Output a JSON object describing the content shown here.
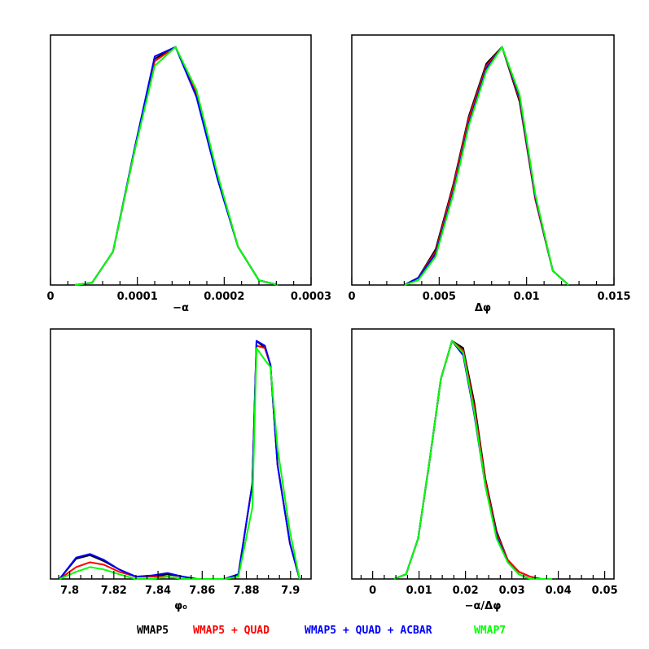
{
  "legend": [
    {
      "name": "WMAP5",
      "color": "#000000"
    },
    {
      "name": "WMAP5 + QUAD",
      "color": "#ff0000"
    },
    {
      "name": "WMAP5 + QUAD + ACBAR",
      "color": "#0000ff"
    },
    {
      "name": "WMAP7",
      "color": "#00ff00"
    }
  ],
  "chart_data": [
    {
      "type": "line",
      "xlabel": "−α",
      "xlim": [
        0,
        0.0003
      ],
      "ylim": [
        0,
        1.05
      ],
      "major_ticks": [
        0,
        0.0001,
        0.0002,
        0.0003
      ],
      "tick_labels": [
        "0",
        "0.0001",
        "0.0002",
        "0.0003"
      ],
      "minor_step": 2e-05,
      "series": [
        {
          "name": "WMAP5",
          "color": "#000000",
          "x": [
            2.8e-05,
            4.8e-05,
            7.2e-05,
            9.6e-05,
            0.00012,
            0.000144,
            0.000168,
            0.000192,
            0.000216,
            0.00024,
            0.000262
          ],
          "y": [
            0.0,
            0.01,
            0.14,
            0.55,
            0.95,
            1.0,
            0.8,
            0.45,
            0.16,
            0.02,
            0.0
          ]
        },
        {
          "name": "WMAP5 + QUAD",
          "color": "#ff0000",
          "x": [
            2.8e-05,
            4.8e-05,
            7.2e-05,
            9.6e-05,
            0.00012,
            0.000144,
            0.000168,
            0.000192,
            0.000216,
            0.00024,
            0.000262
          ],
          "y": [
            0.0,
            0.01,
            0.14,
            0.55,
            0.94,
            1.0,
            0.81,
            0.46,
            0.16,
            0.02,
            0.0
          ]
        },
        {
          "name": "WMAP5 + QUAD + ACBAR",
          "color": "#0000ff",
          "x": [
            2.8e-05,
            4.8e-05,
            7.2e-05,
            9.6e-05,
            0.00012,
            0.000144,
            0.000168,
            0.000192,
            0.000216,
            0.00024,
            0.000262
          ],
          "y": [
            0.0,
            0.01,
            0.14,
            0.56,
            0.96,
            1.0,
            0.79,
            0.45,
            0.16,
            0.02,
            0.0
          ]
        },
        {
          "name": "WMAP7",
          "color": "#00ff00",
          "x": [
            2.8e-05,
            4.8e-05,
            7.2e-05,
            9.6e-05,
            0.00012,
            0.000144,
            0.000168,
            0.000192,
            0.000216,
            0.00024,
            0.000262
          ],
          "y": [
            0.0,
            0.01,
            0.14,
            0.55,
            0.92,
            1.0,
            0.82,
            0.47,
            0.16,
            0.02,
            0.0
          ]
        }
      ]
    },
    {
      "type": "line",
      "xlabel": "Δφ",
      "xlim": [
        0,
        0.015
      ],
      "ylim": [
        0,
        1.05
      ],
      "major_ticks": [
        0,
        0.005,
        0.01,
        0.015
      ],
      "tick_labels": [
        "0",
        "0.005",
        "0.01",
        "0.015"
      ],
      "minor_step": 0.001,
      "series": [
        {
          "name": "WMAP5",
          "color": "#000000",
          "x": [
            0.003,
            0.0038,
            0.0048,
            0.0058,
            0.0067,
            0.0077,
            0.0086,
            0.0096,
            0.0105,
            0.0115,
            0.0124
          ],
          "y": [
            0.0,
            0.03,
            0.15,
            0.42,
            0.71,
            0.93,
            1.0,
            0.77,
            0.36,
            0.06,
            0.0
          ]
        },
        {
          "name": "WMAP5 + QUAD",
          "color": "#ff0000",
          "x": [
            0.003,
            0.0038,
            0.0048,
            0.0058,
            0.0067,
            0.0077,
            0.0086,
            0.0096,
            0.0105,
            0.0115,
            0.0124
          ],
          "y": [
            0.0,
            0.03,
            0.14,
            0.41,
            0.7,
            0.92,
            1.0,
            0.78,
            0.36,
            0.06,
            0.0
          ]
        },
        {
          "name": "WMAP5 + QUAD + ACBAR",
          "color": "#0000ff",
          "x": [
            0.003,
            0.0038,
            0.0048,
            0.0058,
            0.0067,
            0.0077,
            0.0086,
            0.0096,
            0.0105,
            0.0115,
            0.0124
          ],
          "y": [
            0.0,
            0.03,
            0.13,
            0.39,
            0.68,
            0.91,
            1.0,
            0.79,
            0.37,
            0.06,
            0.0
          ]
        },
        {
          "name": "WMAP7",
          "color": "#00ff00",
          "x": [
            0.003,
            0.0038,
            0.0048,
            0.0058,
            0.0067,
            0.0077,
            0.0086,
            0.0096,
            0.0105,
            0.0115,
            0.0124
          ],
          "y": [
            0.0,
            0.02,
            0.12,
            0.38,
            0.67,
            0.9,
            1.0,
            0.8,
            0.38,
            0.06,
            0.0
          ]
        }
      ]
    },
    {
      "type": "line",
      "xlabel": "φ₀",
      "xlim": [
        7.7913,
        7.9093
      ],
      "ylim": [
        0,
        1.05
      ],
      "major_ticks": [
        7.8,
        7.82,
        7.84,
        7.86,
        7.88,
        7.9
      ],
      "tick_labels": [
        "7.8",
        "7.82",
        "7.84",
        "7.86",
        "7.88",
        "7.9"
      ],
      "minor_step": 0.005,
      "series": [
        {
          "name": "WMAP5",
          "color": "#000000",
          "x": [
            7.7954,
            7.8029,
            7.8092,
            7.8155,
            7.8224,
            7.8299,
            7.8374,
            7.8443,
            7.8512,
            7.8576,
            7.8644,
            7.8701,
            7.8764,
            7.8827,
            7.8846,
            7.8884,
            7.8909,
            7.8941,
            7.8997,
            7.9041
          ],
          "y": [
            0.0,
            0.085,
            0.1,
            0.075,
            0.04,
            0.01,
            0.01,
            0.02,
            0.01,
            0.0,
            0.0,
            0.0,
            0.02,
            0.4,
            1.0,
            0.97,
            0.9,
            0.48,
            0.15,
            0.0
          ]
        },
        {
          "name": "WMAP5 + QUAD",
          "color": "#ff0000",
          "x": [
            7.7954,
            7.8029,
            7.8092,
            7.8155,
            7.8224,
            7.8299,
            7.8374,
            7.8443,
            7.8512,
            7.8576,
            7.8644,
            7.8701,
            7.8764,
            7.8827,
            7.8846,
            7.8884,
            7.8909,
            7.8941,
            7.8997,
            7.9041
          ],
          "y": [
            0.0,
            0.05,
            0.07,
            0.06,
            0.03,
            0.01,
            0.01,
            0.01,
            0.0,
            0.0,
            0.0,
            0.0,
            0.02,
            0.4,
            0.98,
            0.97,
            0.9,
            0.48,
            0.15,
            0.0
          ]
        },
        {
          "name": "WMAP5 + QUAD + ACBAR",
          "color": "#0000ff",
          "x": [
            7.7954,
            7.8029,
            7.8092,
            7.8155,
            7.8224,
            7.8299,
            7.8374,
            7.8443,
            7.8512,
            7.8576,
            7.8644,
            7.8701,
            7.8764,
            7.8827,
            7.8846,
            7.8884,
            7.8909,
            7.8941,
            7.8997,
            7.9041
          ],
          "y": [
            0.0,
            0.09,
            0.105,
            0.08,
            0.04,
            0.01,
            0.015,
            0.025,
            0.01,
            0.0,
            0.0,
            0.0,
            0.02,
            0.4,
            1.0,
            0.98,
            0.9,
            0.48,
            0.15,
            0.0
          ]
        },
        {
          "name": "WMAP7",
          "color": "#00ff00",
          "x": [
            7.7954,
            7.8029,
            7.8092,
            7.8155,
            7.8224,
            7.8299,
            7.8374,
            7.8443,
            7.8512,
            7.8576,
            7.8644,
            7.8701,
            7.8764,
            7.8827,
            7.8846,
            7.8884,
            7.8909,
            7.8941,
            7.8997,
            7.9041
          ],
          "y": [
            0.0,
            0.03,
            0.05,
            0.04,
            0.02,
            0.0,
            0.0,
            0.01,
            0.0,
            0.0,
            0.0,
            0.0,
            0.01,
            0.3,
            0.97,
            0.92,
            0.89,
            0.55,
            0.2,
            0.0
          ]
        }
      ]
    },
    {
      "type": "line",
      "xlabel": "−α/Δφ",
      "xlim": [
        -0.0045,
        0.052
      ],
      "ylim": [
        0,
        1.05
      ],
      "major_ticks": [
        0,
        0.01,
        0.02,
        0.03,
        0.04,
        0.05
      ],
      "tick_labels": [
        "0",
        "0.01",
        "0.02",
        "0.03",
        "0.04",
        "0.05"
      ],
      "minor_step": 0.0025,
      "series": [
        {
          "name": "WMAP5",
          "color": "#000000",
          "x": [
            0.0046,
            0.0072,
            0.0098,
            0.0123,
            0.0147,
            0.0171,
            0.0195,
            0.0219,
            0.0243,
            0.0267,
            0.0291,
            0.0315,
            0.0339,
            0.0363,
            0.0387
          ],
          "y": [
            0.0,
            0.02,
            0.17,
            0.5,
            0.84,
            1.0,
            0.97,
            0.74,
            0.42,
            0.2,
            0.08,
            0.03,
            0.01,
            0.0,
            0.0
          ]
        },
        {
          "name": "WMAP5 + QUAD",
          "color": "#ff0000",
          "x": [
            0.0046,
            0.0072,
            0.0098,
            0.0123,
            0.0147,
            0.0171,
            0.0195,
            0.0219,
            0.0243,
            0.0267,
            0.0291,
            0.0315,
            0.0339,
            0.0363,
            0.0387
          ],
          "y": [
            0.0,
            0.02,
            0.17,
            0.5,
            0.84,
            1.0,
            0.96,
            0.72,
            0.41,
            0.19,
            0.08,
            0.03,
            0.01,
            0.0,
            0.0
          ]
        },
        {
          "name": "WMAP5 + QUAD + ACBAR",
          "color": "#0000ff",
          "x": [
            0.0046,
            0.0072,
            0.0098,
            0.0123,
            0.0147,
            0.0171,
            0.0195,
            0.0219,
            0.0243,
            0.0267,
            0.0291,
            0.0315,
            0.0339,
            0.0363,
            0.0387
          ],
          "y": [
            0.0,
            0.02,
            0.17,
            0.5,
            0.84,
            1.0,
            0.94,
            0.69,
            0.39,
            0.18,
            0.07,
            0.02,
            0.0,
            0.0,
            0.0
          ]
        },
        {
          "name": "WMAP7",
          "color": "#00ff00",
          "x": [
            0.0046,
            0.0072,
            0.0098,
            0.0123,
            0.0147,
            0.0171,
            0.0195,
            0.0219,
            0.0243,
            0.0267,
            0.0291,
            0.0315,
            0.0339,
            0.0363,
            0.0387
          ],
          "y": [
            0.0,
            0.02,
            0.17,
            0.5,
            0.84,
            1.0,
            0.95,
            0.7,
            0.39,
            0.17,
            0.07,
            0.02,
            0.0,
            0.0,
            0.0
          ]
        }
      ]
    }
  ]
}
